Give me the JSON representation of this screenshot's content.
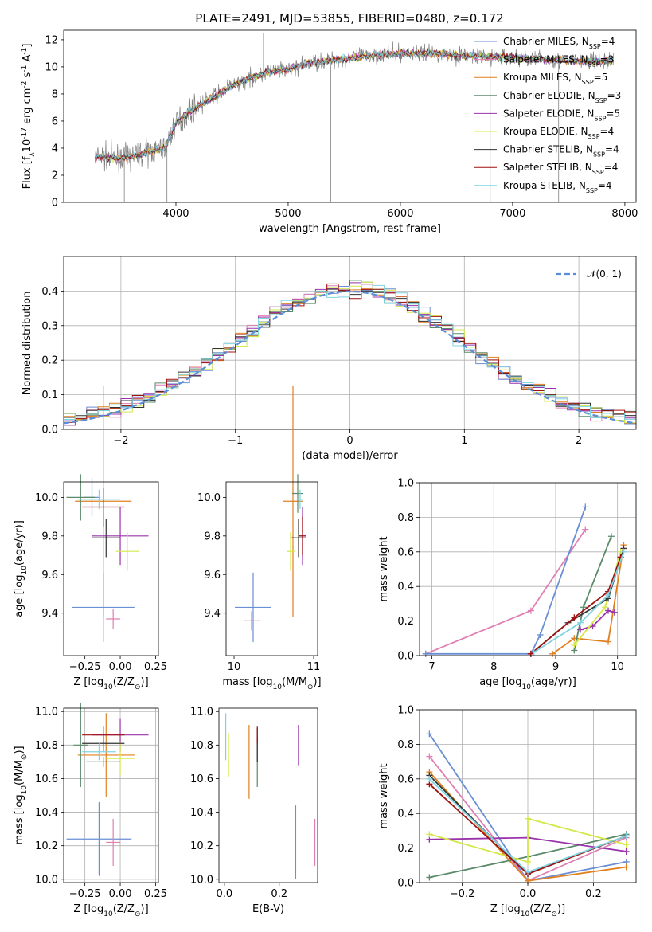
{
  "colors": {
    "chabrier_miles": "#6a8fd4",
    "salpeter_miles": "#e07fb3",
    "kroupa_miles": "#e0801f",
    "chabrier_elodie": "#5a8a6a",
    "salpeter_elodie": "#9933aa",
    "kroupa_elodie": "#d4e84a",
    "chabrier_stelib": "#333333",
    "salpeter_stelib": "#a01010",
    "kroupa_stelib": "#7fd4e0",
    "data": "#808080",
    "normal": "#5b8ed6"
  },
  "chart_data": [
    {
      "id": "spectrum",
      "type": "line",
      "title": "PLATE=2491, MJD=53855, FIBERID=0480, z=0.172",
      "xlabel": "wavelength [Angstrom, rest frame]",
      "ylabel": "Flux [f$_\\lambda$10$^{-17}$ erg cm$^{-2}$ s$^{-1}$ A$^{-1}$]",
      "xlim": [
        3000,
        8100
      ],
      "ylim": [
        0,
        12.7
      ],
      "xticks": [
        "4000",
        "5000",
        "6000",
        "7000",
        "8000"
      ],
      "yticks": [
        "0",
        "2",
        "4",
        "6",
        "8",
        "10",
        "12"
      ],
      "legend": [
        {
          "label": "Chabrier MILES, N",
          "sub": "SSP",
          "n": "=4"
        },
        {
          "label": "Salpeter MILES, N",
          "sub": "SSP",
          "n": "=3"
        },
        {
          "label": "Kroupa MILES, N",
          "sub": "SSP",
          "n": "=5"
        },
        {
          "label": "Chabrier ELODIE, N",
          "sub": "SSP",
          "n": "=3"
        },
        {
          "label": "Salpeter ELODIE, N",
          "sub": "SSP",
          "n": "=5"
        },
        {
          "label": "Kroupa ELODIE, N",
          "sub": "SSP",
          "n": "=4"
        },
        {
          "label": "Chabrier STELIB, N",
          "sub": "SSP",
          "n": "=4"
        },
        {
          "label": "Salpeter STELIB, N",
          "sub": "SSP",
          "n": "=4"
        },
        {
          "label": "Kroupa STELIB, N",
          "sub": "SSP",
          "n": "=4"
        }
      ],
      "legend_position": "upper right",
      "continuum": [
        [
          3280,
          3.4
        ],
        [
          3500,
          3.2
        ],
        [
          3700,
          3.6
        ],
        [
          3900,
          4.0
        ],
        [
          4000,
          5.8
        ],
        [
          4100,
          6.6
        ],
        [
          4300,
          7.6
        ],
        [
          4500,
          8.6
        ],
        [
          4800,
          9.6
        ],
        [
          5000,
          9.8
        ],
        [
          5200,
          10.3
        ],
        [
          5500,
          10.6
        ],
        [
          5800,
          10.9
        ],
        [
          6000,
          11.0
        ],
        [
          6300,
          11.0
        ],
        [
          6600,
          10.8
        ],
        [
          7000,
          10.7
        ],
        [
          7400,
          10.5
        ],
        [
          7800,
          10.4
        ],
        [
          7900,
          10.5
        ]
      ]
    },
    {
      "id": "residuals",
      "type": "histogram",
      "xlabel": "(data-model)/error",
      "ylabel": "Normed distribution",
      "xlim": [
        -2.5,
        2.5
      ],
      "ylim": [
        0,
        0.5
      ],
      "xticks": [
        "−2",
        "−1",
        "0",
        "1",
        "2"
      ],
      "yticks": [
        "0.0",
        "0.1",
        "0.2",
        "0.3",
        "0.4"
      ],
      "legend": "𝒩(0, 1)",
      "legend_position": "upper right",
      "grid": true
    },
    {
      "id": "age-vs-Z",
      "type": "errorbar",
      "xlabel": "Z [log$_{10}$(Z/Z$_\\odot$)]",
      "ylabel": "age  [log$_{10}$(age/yr)]",
      "xlim": [
        -0.4,
        0.27
      ],
      "ylim": [
        9.18,
        10.08
      ],
      "xticks": [
        "−0.25",
        "0.00",
        "0.25"
      ],
      "yticks": [
        "9.4",
        "9.6",
        "9.8",
        "10.0"
      ],
      "points": [
        {
          "k": "chabrier_miles",
          "x": -0.2,
          "y": 10.0,
          "xe": 0.06,
          "ye": 0.1
        },
        {
          "k": "salpeter_miles",
          "x": -0.05,
          "y": 9.37,
          "xe": 0.05,
          "ye": 0.05
        },
        {
          "k": "kroupa_miles",
          "x": -0.12,
          "y": 9.98,
          "xe": 0.2,
          "ye": 0.6
        },
        {
          "k": "chabrier_elodie",
          "x": -0.28,
          "y": 10.0,
          "xe": 0.1,
          "ye": 0.12
        },
        {
          "k": "salpeter_elodie",
          "x": 0.0,
          "y": 9.8,
          "xe": 0.2,
          "ye": 0.15
        },
        {
          "k": "kroupa_elodie",
          "x": 0.05,
          "y": 9.72,
          "xe": 0.08,
          "ye": 0.1
        },
        {
          "k": "chabrier_stelib",
          "x": -0.1,
          "y": 9.79,
          "xe": 0.1,
          "ye": 0.1
        },
        {
          "k": "salpeter_stelib",
          "x": -0.12,
          "y": 9.95,
          "xe": 0.15,
          "ye": 0.1
        },
        {
          "k": "kroupa_stelib",
          "x": -0.15,
          "y": 9.99,
          "xe": 0.15,
          "ye": 0.05
        },
        {
          "k": "chabrier_miles",
          "x": -0.12,
          "y": 9.43,
          "xe": 0.22,
          "ye": 0.18
        }
      ]
    },
    {
      "id": "age-vs-mass",
      "type": "errorbar",
      "xlabel": "mass [log$_{10}$(M/M$_\\odot$)]",
      "ylabel": "",
      "xlim": [
        9.9,
        11.05
      ],
      "ylim": [
        9.18,
        10.08
      ],
      "xticks": [
        "10",
        "11"
      ],
      "yticks": [
        "9.4",
        "9.6",
        "9.8",
        "10.0"
      ],
      "points": [
        {
          "k": "chabrier_miles",
          "x": 10.24,
          "y": 9.43,
          "xe": 0.23,
          "ye": 0.18
        },
        {
          "k": "salpeter_miles",
          "x": 10.22,
          "y": 9.36,
          "xe": 0.1,
          "ye": 0.05
        },
        {
          "k": "kroupa_miles",
          "x": 10.74,
          "y": 9.98,
          "xe": 0.12,
          "ye": 0.6
        },
        {
          "k": "chabrier_elodie",
          "x": 10.8,
          "y": 10.02,
          "xe": 0.07,
          "ye": 0.1
        },
        {
          "k": "salpeter_elodie",
          "x": 10.86,
          "y": 9.8,
          "xe": 0.05,
          "ye": 0.15
        },
        {
          "k": "kroupa_elodie",
          "x": 10.71,
          "y": 9.72,
          "xe": 0.05,
          "ye": 0.1
        },
        {
          "k": "chabrier_stelib",
          "x": 10.81,
          "y": 9.79,
          "xe": 0.1,
          "ye": 0.1
        },
        {
          "k": "salpeter_stelib",
          "x": 10.86,
          "y": 9.8,
          "xe": 0.05,
          "ye": 0.1
        },
        {
          "k": "kroupa_stelib",
          "x": 10.83,
          "y": 9.99,
          "xe": 0.04,
          "ye": 0.05
        }
      ]
    },
    {
      "id": "weight-vs-age",
      "type": "line",
      "xlabel": "age  [log$_{10}$(age/yr)]",
      "ylabel": "mass weight",
      "xlim": [
        6.8,
        10.3
      ],
      "ylim": [
        0,
        1
      ],
      "xticks": [
        "7",
        "8",
        "9",
        "10"
      ],
      "yticks": [
        "0.0",
        "0.2",
        "0.4",
        "0.6",
        "0.8",
        "1.0"
      ],
      "grid": true,
      "series": [
        {
          "k": "salpeter_miles",
          "x": [
            6.9,
            8.6,
            9.48
          ],
          "y": [
            0.01,
            0.26,
            0.73
          ]
        },
        {
          "k": "chabrier_miles",
          "x": [
            6.9,
            8.6,
            8.75,
            9.48
          ],
          "y": [
            0.01,
            0.01,
            0.12,
            0.86
          ]
        },
        {
          "k": "kroupa_miles",
          "x": [
            8.95,
            9.3,
            9.85,
            10.1
          ],
          "y": [
            0.01,
            0.1,
            0.08,
            0.64
          ]
        },
        {
          "k": "chabrier_elodie",
          "x": [
            9.3,
            9.45,
            9.9
          ],
          "y": [
            0.03,
            0.28,
            0.69
          ]
        },
        {
          "k": "salpeter_elodie",
          "x": [
            9.4,
            9.6,
            9.85,
            9.95
          ],
          "y": [
            0.15,
            0.17,
            0.26,
            0.25
          ]
        },
        {
          "k": "kroupa_elodie",
          "x": [
            9.3,
            9.8,
            10.05
          ],
          "y": [
            0.06,
            0.28,
            0.6
          ]
        },
        {
          "k": "chabrier_stelib",
          "x": [
            8.6,
            9.2,
            9.85,
            10.1
          ],
          "y": [
            0.01,
            0.19,
            0.33,
            0.62
          ]
        },
        {
          "k": "salpeter_stelib",
          "x": [
            8.6,
            9.3,
            9.85,
            10.05
          ],
          "y": [
            0.01,
            0.22,
            0.37,
            0.57
          ]
        },
        {
          "k": "kroupa_stelib",
          "x": [
            8.65,
            9.4,
            9.85,
            10.1
          ],
          "y": [
            0.02,
            0.19,
            0.35,
            0.6
          ]
        }
      ]
    },
    {
      "id": "mass-vs-Z",
      "type": "errorbar",
      "xlabel": "Z [log$_{10}$(Z/Z$_\\odot$)]",
      "ylabel": "mass [log$_{10}$(M/M$_\\odot$)]",
      "xlim": [
        -0.4,
        0.27
      ],
      "ylim": [
        9.98,
        11.02
      ],
      "xticks": [
        "−0.25",
        "0.00",
        "0.25"
      ],
      "yticks": [
        "10.0",
        "10.2",
        "10.4",
        "10.6",
        "10.8",
        "11.0"
      ],
      "grid": true,
      "points": [
        {
          "k": "chabrier_miles",
          "x": -0.15,
          "y": 10.24,
          "xe": 0.23,
          "ye": 0.22
        },
        {
          "k": "salpeter_miles",
          "x": -0.05,
          "y": 10.22,
          "xe": 0.05,
          "ye": 0.14
        },
        {
          "k": "kroupa_miles",
          "x": -0.1,
          "y": 10.74,
          "xe": 0.2,
          "ye": 0.25
        },
        {
          "k": "chabrier_elodie",
          "x": -0.28,
          "y": 10.8,
          "xe": 0.05,
          "ye": 0.25
        },
        {
          "k": "salpeter_elodie",
          "x": 0.0,
          "y": 10.86,
          "xe": 0.2,
          "ye": 0.1
        },
        {
          "k": "kroupa_elodie",
          "x": 0.0,
          "y": 10.72,
          "xe": 0.1,
          "ye": 0.1
        },
        {
          "k": "chabrier_stelib",
          "x": -0.12,
          "y": 10.81,
          "xe": 0.15,
          "ye": 0.05
        },
        {
          "k": "salpeter_stelib",
          "x": -0.12,
          "y": 10.86,
          "xe": 0.15,
          "ye": 0.05
        },
        {
          "k": "kroupa_stelib",
          "x": -0.15,
          "y": 10.76,
          "xe": 0.12,
          "ye": 0.05
        },
        {
          "k": "chabrier_elodie",
          "x": -0.12,
          "y": 10.7,
          "xe": 0.12,
          "ye": 0.03
        }
      ]
    },
    {
      "id": "mass-vs-ebv",
      "type": "errorbar",
      "xlabel": "E(B-V)",
      "ylabel": "",
      "xlim": [
        -0.02,
        0.34
      ],
      "ylim": [
        9.98,
        11.02
      ],
      "xticks": [
        "0.0",
        "0.2"
      ],
      "yticks": [
        "10.0",
        "10.2",
        "10.4",
        "10.6",
        "10.8",
        "11.0"
      ],
      "points": [
        {
          "k": "chabrier_miles",
          "x": 0.26,
          "y": 10.22,
          "xe": 0,
          "ye": 0.22
        },
        {
          "k": "salpeter_miles",
          "x": 0.33,
          "y": 10.22,
          "xe": 0,
          "ye": 0.14
        },
        {
          "k": "kroupa_miles",
          "x": 0.09,
          "y": 10.7,
          "xe": 0,
          "ye": 0.22
        },
        {
          "k": "chabrier_elodie",
          "x": 0.12,
          "y": 10.7,
          "xe": 0,
          "ye": 0.15
        },
        {
          "k": "salpeter_elodie",
          "x": 0.27,
          "y": 10.8,
          "xe": 0,
          "ye": 0.12
        },
        {
          "k": "kroupa_elodie",
          "x": 0.015,
          "y": 10.74,
          "xe": 0,
          "ye": 0.13
        },
        {
          "k": "chabrier_stelib",
          "x": 0.12,
          "y": 10.8,
          "xe": 0,
          "ye": 0.1
        },
        {
          "k": "salpeter_stelib",
          "x": 0.12,
          "y": 10.86,
          "xe": 0,
          "ye": 0.05
        },
        {
          "k": "kroupa_stelib",
          "x": 0.005,
          "y": 10.85,
          "xe": 0,
          "ye": 0.14
        }
      ]
    },
    {
      "id": "weight-vs-Z",
      "type": "line",
      "xlabel": "Z [log$_{10}$(Z/Z$_\\odot$)]",
      "ylabel": "mass weight",
      "xlim": [
        -0.33,
        0.33
      ],
      "ylim": [
        0,
        1
      ],
      "xticks": [
        "−0.2",
        "0.0",
        "0.2"
      ],
      "yticks": [
        "0.0",
        "0.2",
        "0.4",
        "0.6",
        "0.8",
        "1.0"
      ],
      "grid": true,
      "series": [
        {
          "k": "chabrier_miles",
          "x": [
            -0.3,
            0.0,
            0.3
          ],
          "y": [
            0.86,
            0.01,
            0.12
          ]
        },
        {
          "k": "salpeter_miles",
          "x": [
            -0.3,
            0.0,
            0.3
          ],
          "y": [
            0.73,
            0.01,
            0.26
          ]
        },
        {
          "k": "kroupa_miles",
          "x": [
            -0.3,
            0.0,
            0.3
          ],
          "y": [
            0.64,
            0.01,
            0.09
          ]
        },
        {
          "k": "chabrier_elodie",
          "x": [
            -0.3,
            0.0,
            0.3
          ],
          "y": [
            0.03,
            0.15,
            0.28
          ]
        },
        {
          "k": "salpeter_elodie",
          "x": [
            -0.3,
            0.0,
            0.3
          ],
          "y": [
            0.25,
            0.26,
            0.18
          ]
        },
        {
          "k": "kroupa_elodie",
          "x": [
            -0.3,
            0.0,
            0.0,
            0.3
          ],
          "y": [
            0.28,
            0.12,
            0.37,
            0.22
          ]
        },
        {
          "k": "chabrier_stelib",
          "x": [
            -0.3,
            0.0,
            0.3
          ],
          "y": [
            0.62,
            0.05,
            0.27
          ]
        },
        {
          "k": "salpeter_stelib",
          "x": [
            -0.3,
            0.0,
            0.3
          ],
          "y": [
            0.57,
            0.05,
            0.27
          ]
        },
        {
          "k": "kroupa_stelib",
          "x": [
            -0.3,
            0.0,
            0.3
          ],
          "y": [
            0.6,
            0.06,
            0.27
          ]
        }
      ]
    }
  ]
}
